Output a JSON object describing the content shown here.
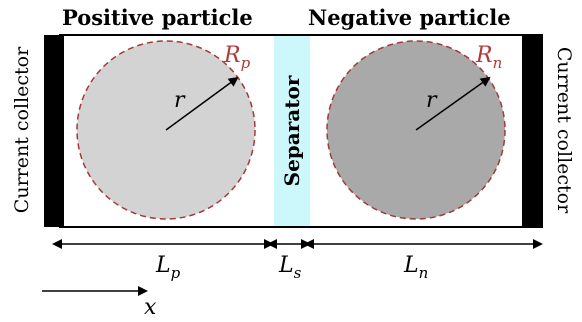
{
  "titles": {
    "positive": "Positive particle",
    "negative": "Negative particle"
  },
  "current_collector_label": "Current collector",
  "separator_label": "Separator",
  "positive_particle": {
    "radius_label": "R",
    "radius_sub": "p",
    "r_label": "r"
  },
  "negative_particle": {
    "radius_label": "R",
    "radius_sub": "n",
    "r_label": "r"
  },
  "dimensions": {
    "Lp": {
      "main": "L",
      "sub": "p"
    },
    "Ls": {
      "main": "L",
      "sub": "s"
    },
    "Ln": {
      "main": "L",
      "sub": "n"
    }
  },
  "axis_label": "x",
  "colors": {
    "positive_particle_fill": "#d3d3d3",
    "negative_particle_fill": "#a9a9a9",
    "particle_outline": "#a23a3a",
    "separator_fill": "#ccf8fb",
    "collector_fill": "#000000"
  }
}
